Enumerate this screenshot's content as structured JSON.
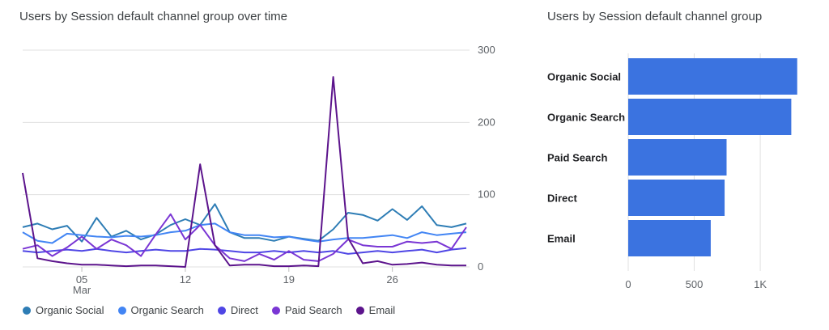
{
  "chart_data": [
    {
      "type": "line",
      "title": "Users by Session default channel group over time",
      "y_ticks": [
        0,
        100,
        200,
        300
      ],
      "ylim": [
        0,
        300
      ],
      "x_ticks": [
        {
          "day": 5,
          "label": "05",
          "sublabel": "Mar"
        },
        {
          "day": 12,
          "label": "12"
        },
        {
          "day": 19,
          "label": "19"
        },
        {
          "day": 26,
          "label": "26"
        }
      ],
      "x": [
        1,
        2,
        3,
        4,
        5,
        6,
        7,
        8,
        9,
        10,
        11,
        12,
        13,
        14,
        15,
        16,
        17,
        18,
        19,
        20,
        21,
        22,
        23,
        24,
        25,
        26,
        27,
        28,
        29,
        30,
        31
      ],
      "series": [
        {
          "name": "Organic Social",
          "color": "#2e7db5",
          "values": [
            55,
            60,
            52,
            57,
            35,
            68,
            42,
            50,
            38,
            45,
            58,
            66,
            58,
            87,
            48,
            40,
            40,
            36,
            42,
            39,
            36,
            52,
            75,
            72,
            64,
            80,
            65,
            84,
            58,
            55,
            60
          ]
        },
        {
          "name": "Organic Search",
          "color": "#4285f4",
          "values": [
            48,
            36,
            33,
            46,
            44,
            42,
            41,
            43,
            42,
            44,
            48,
            50,
            58,
            60,
            48,
            44,
            44,
            41,
            42,
            38,
            35,
            38,
            40,
            40,
            42,
            44,
            40,
            48,
            44,
            46,
            48
          ]
        },
        {
          "name": "Direct",
          "color": "#4f46e5",
          "values": [
            22,
            20,
            22,
            24,
            22,
            25,
            22,
            20,
            22,
            24,
            22,
            22,
            25,
            24,
            22,
            20,
            20,
            22,
            20,
            22,
            20,
            22,
            18,
            20,
            22,
            20,
            22,
            24,
            20,
            24,
            26
          ]
        },
        {
          "name": "Paid Search",
          "color": "#7a36d4",
          "values": [
            25,
            30,
            15,
            27,
            42,
            25,
            38,
            30,
            15,
            45,
            73,
            38,
            58,
            30,
            12,
            8,
            18,
            10,
            22,
            10,
            8,
            18,
            38,
            30,
            28,
            28,
            35,
            33,
            35,
            25,
            55
          ]
        },
        {
          "name": "Email",
          "color": "#5c148c",
          "values": [
            130,
            12,
            8,
            5,
            3,
            3,
            2,
            1,
            2,
            2,
            1,
            0,
            142,
            30,
            2,
            3,
            3,
            1,
            1,
            2,
            1,
            263,
            40,
            5,
            8,
            3,
            4,
            6,
            3,
            2,
            2
          ]
        }
      ]
    },
    {
      "type": "bar",
      "orientation": "horizontal",
      "title": "Users by Session default channel group",
      "categories": [
        "Organic Social",
        "Organic Search",
        "Paid Search",
        "Direct",
        "Email"
      ],
      "values": [
        1280,
        1235,
        745,
        730,
        625
      ],
      "x_ticks": [
        {
          "value": 0,
          "label": "0"
        },
        {
          "value": 500,
          "label": "500"
        },
        {
          "value": 1000,
          "label": "1K"
        }
      ],
      "xlim": [
        0,
        1300
      ],
      "color": "#3b73e0"
    }
  ]
}
